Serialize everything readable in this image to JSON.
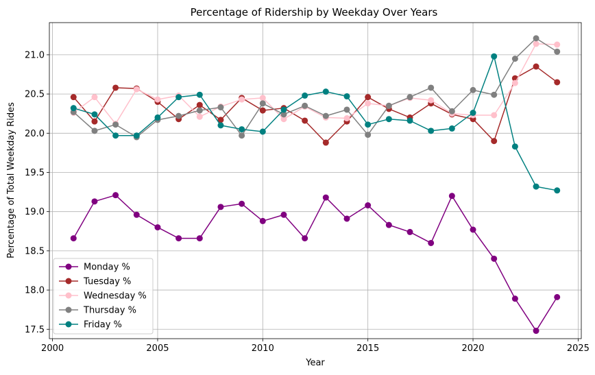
{
  "chart_data": {
    "type": "line",
    "title": "Percentage of Ridership by Weekday Over Years",
    "xlabel": "Year",
    "ylabel": "Percentage of Total Weekday Rides",
    "xlim": [
      1999.85,
      2025.15
    ],
    "ylim": [
      17.38,
      21.41
    ],
    "xticks": [
      2000,
      2005,
      2010,
      2015,
      2020,
      2025
    ],
    "yticks": [
      17.5,
      18.0,
      18.5,
      19.0,
      19.5,
      20.0,
      20.5,
      21.0
    ],
    "grid": true,
    "legend_position": "lower-left",
    "x": [
      2001,
      2002,
      2003,
      2004,
      2005,
      2006,
      2007,
      2008,
      2009,
      2010,
      2011,
      2012,
      2013,
      2014,
      2015,
      2016,
      2017,
      2018,
      2019,
      2020,
      2021,
      2022,
      2023,
      2024
    ],
    "series": [
      {
        "name": "Monday %",
        "color": "#800080",
        "values": [
          18.66,
          19.13,
          19.21,
          18.96,
          18.8,
          18.66,
          18.66,
          19.06,
          19.1,
          18.88,
          18.96,
          18.66,
          19.18,
          18.91,
          19.08,
          18.83,
          18.74,
          18.6,
          19.2,
          18.77,
          18.4,
          17.89,
          17.48,
          17.91
        ]
      },
      {
        "name": "Tuesday %",
        "color": "#a52a2a",
        "values": [
          20.46,
          20.15,
          20.58,
          20.57,
          20.4,
          20.18,
          20.36,
          20.17,
          20.45,
          20.29,
          20.32,
          20.16,
          19.88,
          20.15,
          20.46,
          20.31,
          20.2,
          20.38,
          20.24,
          20.18,
          19.9,
          20.7,
          20.85,
          20.65
        ]
      },
      {
        "name": "Wednesday %",
        "color": "#ffc0cb",
        "values": [
          20.26,
          20.46,
          20.12,
          20.56,
          20.43,
          20.48,
          20.21,
          20.34,
          20.43,
          20.45,
          20.18,
          20.34,
          20.2,
          20.19,
          20.38,
          20.35,
          20.45,
          20.42,
          20.25,
          20.23,
          20.23,
          20.64,
          21.14,
          21.13
        ]
      },
      {
        "name": "Thursday %",
        "color": "#808080",
        "values": [
          20.27,
          20.03,
          20.11,
          19.95,
          20.17,
          20.22,
          20.29,
          20.33,
          19.97,
          20.38,
          20.24,
          20.35,
          20.22,
          20.3,
          19.98,
          20.35,
          20.46,
          20.58,
          20.28,
          20.55,
          20.49,
          20.95,
          21.21,
          21.04
        ]
      },
      {
        "name": "Friday %",
        "color": "#008080",
        "values": [
          20.32,
          20.24,
          19.97,
          19.97,
          20.2,
          20.46,
          20.49,
          20.1,
          20.05,
          20.02,
          20.3,
          20.48,
          20.53,
          20.47,
          20.11,
          20.18,
          20.16,
          20.03,
          20.06,
          20.26,
          20.98,
          19.83,
          19.32,
          19.27
        ]
      }
    ]
  }
}
